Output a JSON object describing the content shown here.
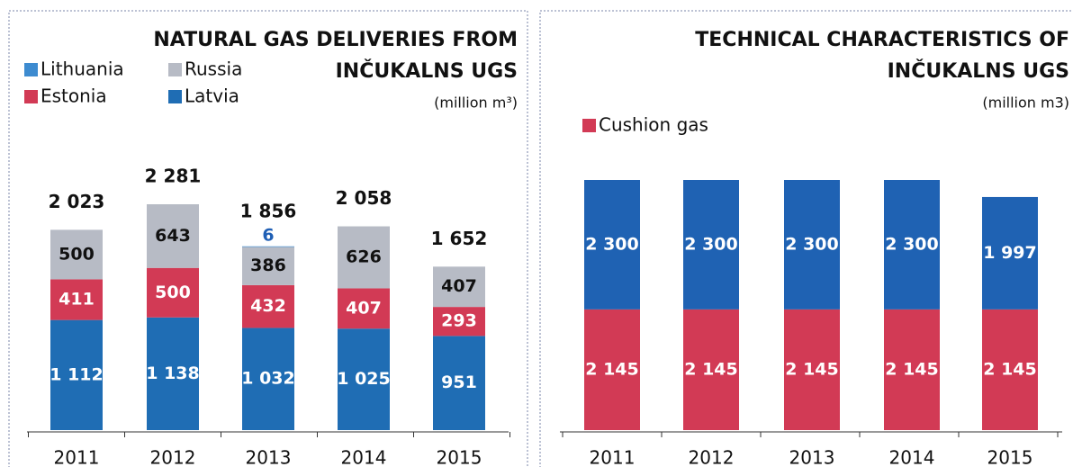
{
  "chart_data": [
    {
      "type": "stacked_bar",
      "title": [
        "NATURAL GAS DELIVERIES FROM",
        "INČUKALNS UGS"
      ],
      "subtitle": "(million m³)",
      "categories": [
        "2011",
        "2012",
        "2013",
        "2014",
        "2015"
      ],
      "series": [
        {
          "name": "Latvia",
          "color": "#1f6db4",
          "label_color": "#ffffff",
          "values": [
            1112,
            1138,
            1032,
            1025,
            951
          ],
          "value_labels": [
            "1 112",
            "1 138",
            "1 032",
            "1 025",
            "951"
          ]
        },
        {
          "name": "Estonia",
          "color": "#d23a55",
          "label_color": "#ffffff",
          "values": [
            411,
            500,
            432,
            407,
            293
          ]
        },
        {
          "name": "Russia",
          "color": "#b7bbc5",
          "label_color": "#111111",
          "values": [
            500,
            643,
            386,
            626,
            407
          ]
        },
        {
          "name": "Lithuania",
          "color": "#3d8bd0",
          "label_color": "#1f5fb5",
          "values": [
            null,
            null,
            6,
            null,
            null
          ]
        }
      ],
      "totals": [
        2023,
        2281,
        1856,
        2058,
        1652
      ],
      "totals_labels": [
        "2 023",
        "2 281",
        "1 856",
        "2 058",
        "1 652"
      ]
    },
    {
      "type": "stacked_bar",
      "title": [
        "TECHNICAL CHARACTERISTICS OF",
        "INČUKALNS UGS"
      ],
      "subtitle": "(million m3)",
      "categories": [
        "2011",
        "2012",
        "2013",
        "2014",
        "2015"
      ],
      "series": [
        {
          "name": "Cushion gas",
          "color": "#d23a55",
          "label_color": "#ffffff",
          "values": [
            2145,
            2145,
            2145,
            2145,
            2145
          ],
          "value_labels": [
            "2 145",
            "2 145",
            "2 145",
            "2 145",
            "2 145"
          ]
        },
        {
          "color": "#1f62b3",
          "label_color": "#ffffff",
          "values": [
            2300,
            2300,
            2300,
            2300,
            1997
          ],
          "value_labels": [
            "2 300",
            "2 300",
            "2 300",
            "2 300",
            "1 997"
          ]
        }
      ]
    }
  ]
}
